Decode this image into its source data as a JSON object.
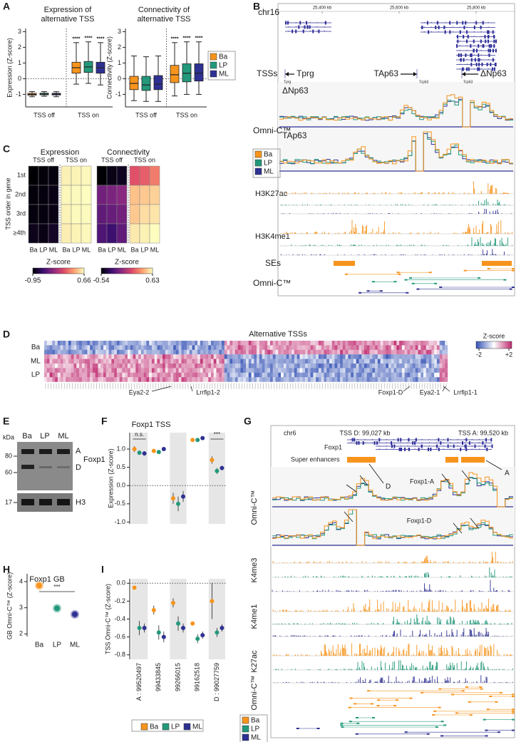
{
  "colors": [
    "#f7941d",
    "#23987a",
    "#2e3192"
  ],
  "panel_labels": [
    "A",
    "B",
    "C",
    "D",
    "E",
    "F",
    "G",
    "H",
    "I"
  ],
  "A": {
    "expression": {
      "type": "box",
      "title": [
        "Expression of",
        "alternative TSS"
      ],
      "ylabel": "Expression (Z-score)",
      "categories": [
        "TSS off",
        "TSS on"
      ],
      "ylim": [
        -1.8,
        3.2
      ],
      "yticks": [
        -1,
        0,
        1,
        2,
        3
      ],
      "series": [
        {
          "boxes": [
            {
              "whislo": -1.15,
              "q1": -1.05,
              "med": -1.0,
              "q3": -0.93,
              "whishi": -0.82
            },
            {
              "whislo": -0.35,
              "q1": 0.35,
              "med": 0.7,
              "q3": 1.05,
              "whishi": 2.3
            }
          ]
        },
        {
          "boxes": [
            {
              "whislo": -1.12,
              "q1": -1.03,
              "med": -0.98,
              "q3": -0.92,
              "whishi": -0.82
            },
            {
              "whislo": -0.3,
              "q1": 0.4,
              "med": 0.75,
              "q3": 1.1,
              "whishi": 2.35
            }
          ]
        },
        {
          "boxes": [
            {
              "whislo": -1.15,
              "q1": -1.04,
              "med": -0.99,
              "q3": -0.93,
              "whishi": -0.83
            },
            {
              "whislo": -0.4,
              "q1": 0.35,
              "med": 0.7,
              "q3": 1.05,
              "whishi": 2.3
            }
          ]
        }
      ],
      "annotations": [
        "****",
        "****",
        "****"
      ]
    },
    "connectivity": {
      "type": "box",
      "title": [
        "Connectivity of",
        "alternative TSS"
      ],
      "ylabel": "Connectivity (Z-score)",
      "categories": [
        "TSS off",
        "TSS on"
      ],
      "ylim": [
        -1.8,
        3.2
      ],
      "yticks": [
        -1,
        0,
        1,
        2,
        3
      ],
      "series": [
        {
          "boxes": [
            {
              "whislo": -1.4,
              "q1": -0.7,
              "med": -0.3,
              "q3": 0.15,
              "whishi": 1.45
            },
            {
              "whislo": -1.1,
              "q1": -0.25,
              "med": 0.25,
              "q3": 0.85,
              "whishi": 2.3
            }
          ]
        },
        {
          "boxes": [
            {
              "whislo": -1.45,
              "q1": -0.75,
              "med": -0.4,
              "q3": 0.15,
              "whishi": 1.4
            },
            {
              "whislo": -1.0,
              "q1": -0.2,
              "med": 0.35,
              "q3": 0.95,
              "whishi": 2.35
            }
          ]
        },
        {
          "boxes": [
            {
              "whislo": -1.45,
              "q1": -0.7,
              "med": -0.35,
              "q3": 0.2,
              "whishi": 1.45
            },
            {
              "whislo": -1.0,
              "q1": -0.15,
              "med": 0.35,
              "q3": 0.95,
              "whishi": 2.35
            }
          ]
        }
      ],
      "annotations": [
        "****",
        "****",
        "****"
      ]
    },
    "legend": [
      "Ba",
      "LP",
      "ML"
    ]
  },
  "B": {
    "chrom": "chr16",
    "ruler": [
      "25,400 kb",
      "25,600 kb",
      "25,800 kb"
    ],
    "tss_label": "TSSs",
    "tss_names": [
      "Tprg",
      "TAp63",
      "ΔNp63"
    ],
    "tss_small": [
      "Tprg",
      "Tcp63",
      "Tcp63"
    ],
    "omni_label": "Omni-C™",
    "omni_tracks": [
      "ΔNp63",
      "TAp63"
    ],
    "legend": [
      "Ba",
      "LP",
      "ML"
    ],
    "tracks": [
      "H3K27ac",
      "H3K4me1",
      "SEs",
      "Omni-C™"
    ]
  },
  "C": {
    "ylabel": "TSS order in gene",
    "rows": [
      "1st",
      "2nd",
      "3rd",
      "≥4th"
    ],
    "expression": {
      "type": "heatmap",
      "title": "Expression",
      "column_groups": [
        "TSS off",
        "TSS on"
      ],
      "columns": [
        "Ba",
        "LP",
        "ML",
        "Ba",
        "LP",
        "ML"
      ],
      "values": [
        [
          -0.95,
          -0.93,
          -0.92,
          0.62,
          0.63,
          0.64
        ],
        [
          -0.93,
          -0.92,
          -0.9,
          0.64,
          0.65,
          0.66
        ],
        [
          -0.92,
          -0.92,
          -0.9,
          0.63,
          0.65,
          0.65
        ],
        [
          -0.88,
          -0.9,
          -0.85,
          0.61,
          0.63,
          0.64
        ]
      ],
      "colorbar": {
        "label": "Z-score",
        "lim": [
          -0.95,
          0.66
        ],
        "ticks": [
          -0.95,
          0.66
        ]
      }
    },
    "connectivity": {
      "type": "heatmap",
      "title": "Connectivity",
      "column_groups": [
        "TSS off",
        "TSS on"
      ],
      "columns": [
        "Ba",
        "LP",
        "ML",
        "Ba",
        "LP",
        "ML"
      ],
      "values": [
        [
          -0.54,
          -0.5,
          -0.48,
          0.18,
          0.22,
          0.3
        ],
        [
          -0.15,
          -0.12,
          -0.08,
          0.48,
          0.5,
          0.52
        ],
        [
          -0.2,
          -0.18,
          -0.15,
          0.5,
          0.55,
          0.57
        ],
        [
          -0.25,
          -0.3,
          -0.2,
          0.58,
          0.6,
          0.63
        ]
      ],
      "colorbar": {
        "label": "Z-score",
        "lim": [
          -0.54,
          0.63
        ],
        "ticks": [
          -0.54,
          0.63
        ]
      }
    }
  },
  "D": {
    "title": "Alternative TSSs",
    "row_groups": [
      "Ba",
      "ML",
      "LP"
    ],
    "gene_labels": [
      "Eya2-2",
      "Lrrfip1-2",
      "Foxp1-D",
      "Eya2-1",
      "Lrrfip1-1"
    ],
    "colorbar": {
      "label": "Z-score",
      "ticks": [
        -2,
        {
          "value": 2,
          "label": "+2"
        }
      ]
    }
  },
  "E": {
    "unit": "kDa",
    "lanes": [
      "Ba",
      "LP",
      "ML"
    ],
    "markers": [
      80,
      60,
      17
    ],
    "bands": [
      "A",
      "D"
    ],
    "proteins": [
      "Foxp1",
      "H3"
    ]
  },
  "F": {
    "type": "dot",
    "title": "Foxp1 TSS",
    "ylabel": "Expression (Z-score)",
    "ylim": [
      -1.05,
      1.45
    ],
    "yticks": [
      {
        "value": 1,
        "label": "1.0"
      },
      0.5,
      {
        "value": 0,
        "label": "0.0"
      },
      -0.5,
      {
        "value": -1,
        "label": "-1.0"
      }
    ],
    "series": [
      {
        "values": [
          1.0,
          0.95,
          -0.35,
          1.25,
          0.7
        ],
        "errors": [
          0.08,
          0.05,
          0.15,
          0.03,
          0.1
        ]
      },
      {
        "values": [
          0.9,
          0.92,
          -0.5,
          1.25,
          0.4
        ],
        "errors": [
          0.06,
          0.05,
          0.2,
          0.04,
          0.08
        ]
      },
      {
        "values": [
          0.88,
          1.0,
          -0.3,
          1.3,
          0.48
        ],
        "errors": [
          0.06,
          0.04,
          0.15,
          0.04,
          0.06
        ]
      }
    ],
    "group_annotations": [
      "n.s.",
      null,
      null,
      null,
      "***"
    ]
  },
  "G": {
    "chrom": "chr6",
    "tss_labels": [
      "TSS D: 99,027 kb",
      "TSS A: 99,520 kb"
    ],
    "gene": "Foxp1",
    "super_enhancers": "Super enhancers",
    "arrow_labels": [
      "A",
      "D"
    ],
    "omni_label": "Omni-C™",
    "omni_tracks": [
      "Foxp1-A",
      "Foxp1-D"
    ],
    "tracks": [
      "K4me3",
      "K4me1",
      "K27ac",
      "Omni-C™"
    ],
    "legend": [
      "Ba",
      "LP",
      "ML"
    ]
  },
  "H": {
    "type": "dot",
    "title": "Foxp1 GB",
    "ylabel": "GB Omni-C™ (Z-score)",
    "categories": [
      "Ba",
      "LP",
      "ML"
    ],
    "values": [
      3.85,
      2.98,
      2.75
    ],
    "ylim": [
      1.9,
      4.3
    ],
    "yticks": [
      2,
      3,
      4
    ],
    "annotation": "***"
  },
  "I": {
    "type": "dot",
    "ylabel": "TSS Omni-C™ (Z-score)",
    "categories": [
      "A : 99520497",
      "99433845",
      "99266015",
      "99162518",
      "D : 99027759"
    ],
    "ylim": [
      -0.85,
      0.05
    ],
    "yticks": [
      {
        "value": 0,
        "label": "0.0"
      },
      -0.2,
      -0.4,
      -0.6,
      -0.8
    ],
    "series": [
      {
        "values": [
          -0.05,
          -0.3,
          -0.22,
          -0.45,
          -0.2
        ],
        "errors": [
          0.02,
          0.05,
          0.05,
          0.01,
          0.2
        ]
      },
      {
        "values": [
          -0.5,
          -0.55,
          -0.45,
          -0.62,
          -0.55
        ],
        "errors": [
          0.08,
          0.08,
          0.08,
          0.05,
          0.05
        ]
      },
      {
        "values": [
          -0.5,
          -0.6,
          -0.5,
          -0.58,
          -0.5
        ],
        "errors": [
          0.05,
          0.06,
          0.05,
          0.04,
          0.04
        ]
      }
    ],
    "legend": [
      "Ba",
      "LP",
      "ML"
    ]
  }
}
